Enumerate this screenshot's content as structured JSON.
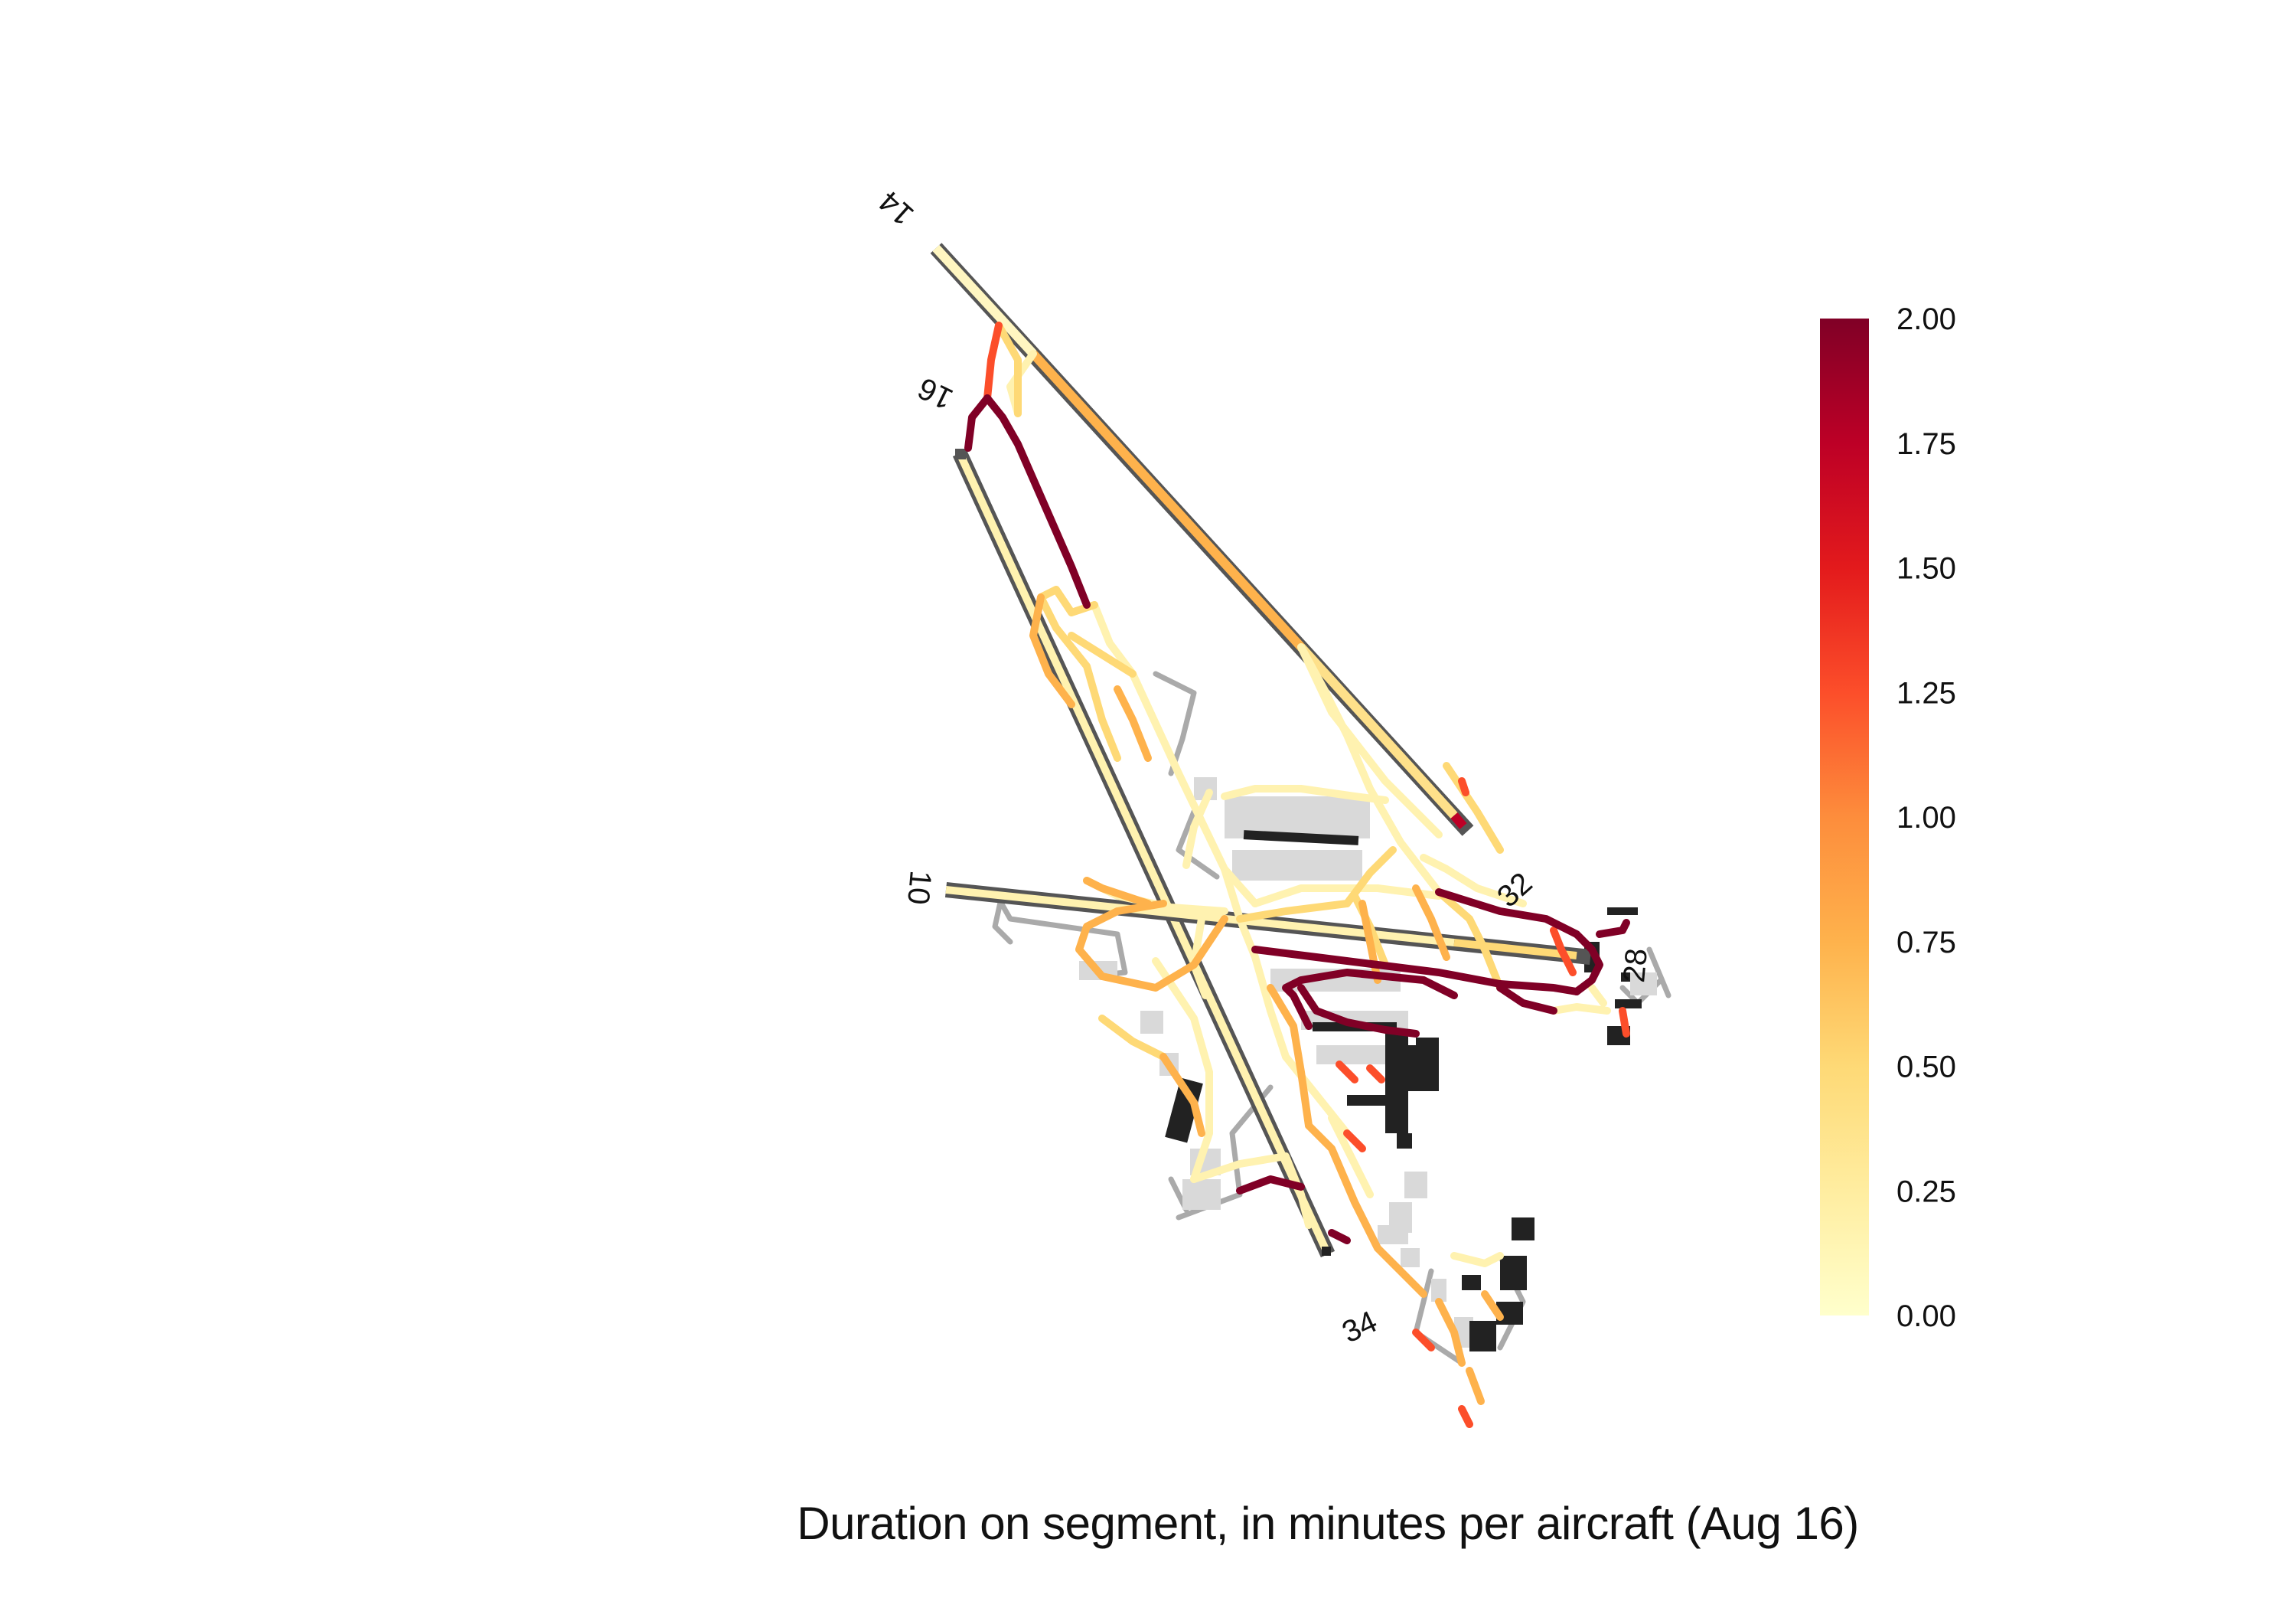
{
  "caption": "Duration on segment, in minutes per aircraft (Aug 16)",
  "runway_labels": {
    "r14": "14",
    "r16": "16",
    "r10": "10",
    "r32": "32",
    "r28": "28",
    "r34": "34"
  },
  "colorbar": {
    "min": 0.0,
    "max": 2.0,
    "ticks": [
      "0.00",
      "0.25",
      "0.50",
      "0.75",
      "1.00",
      "1.25",
      "1.50",
      "1.75",
      "2.00"
    ],
    "colormap": "YlOrRd",
    "stops": [
      "#ffffcc",
      "#ffeda0",
      "#fed976",
      "#feb24c",
      "#fd8d3c",
      "#fc4e2a",
      "#e31a1c",
      "#bd0026",
      "#800026"
    ]
  },
  "colors": {
    "runway_edge": "#555555",
    "service_road": "#aaaaaa",
    "apron": "#d9d9d9",
    "terminal": "#222222"
  }
}
